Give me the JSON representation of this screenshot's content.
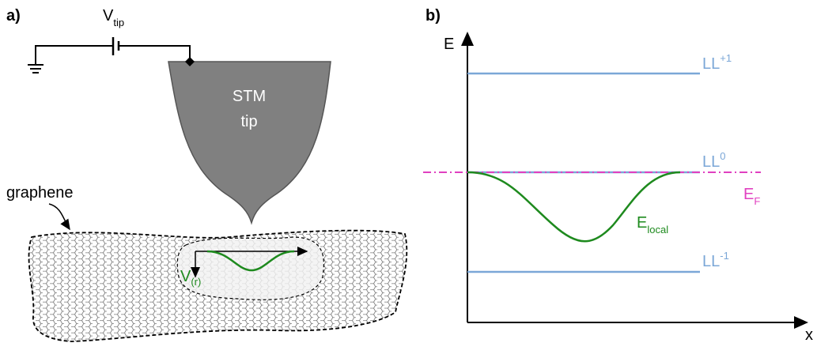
{
  "panel_a": {
    "label": "a)",
    "v_tip": {
      "main": "V",
      "sub": "tip"
    },
    "stm_tip": [
      "STM",
      "tip"
    ],
    "graphene": "graphene",
    "potential": {
      "main": "V",
      "sub": "(r)"
    }
  },
  "panel_b": {
    "label": "b)",
    "y_axis": "E",
    "x_axis": "x",
    "levels": [
      {
        "name": "LL",
        "sup": "+1"
      },
      {
        "name": "LL",
        "sup": "0"
      },
      {
        "name": "LL",
        "sup": "-1"
      }
    ],
    "fermi": {
      "main": "E",
      "sub": "F"
    },
    "local": {
      "main": "E",
      "sub": "local"
    }
  }
}
